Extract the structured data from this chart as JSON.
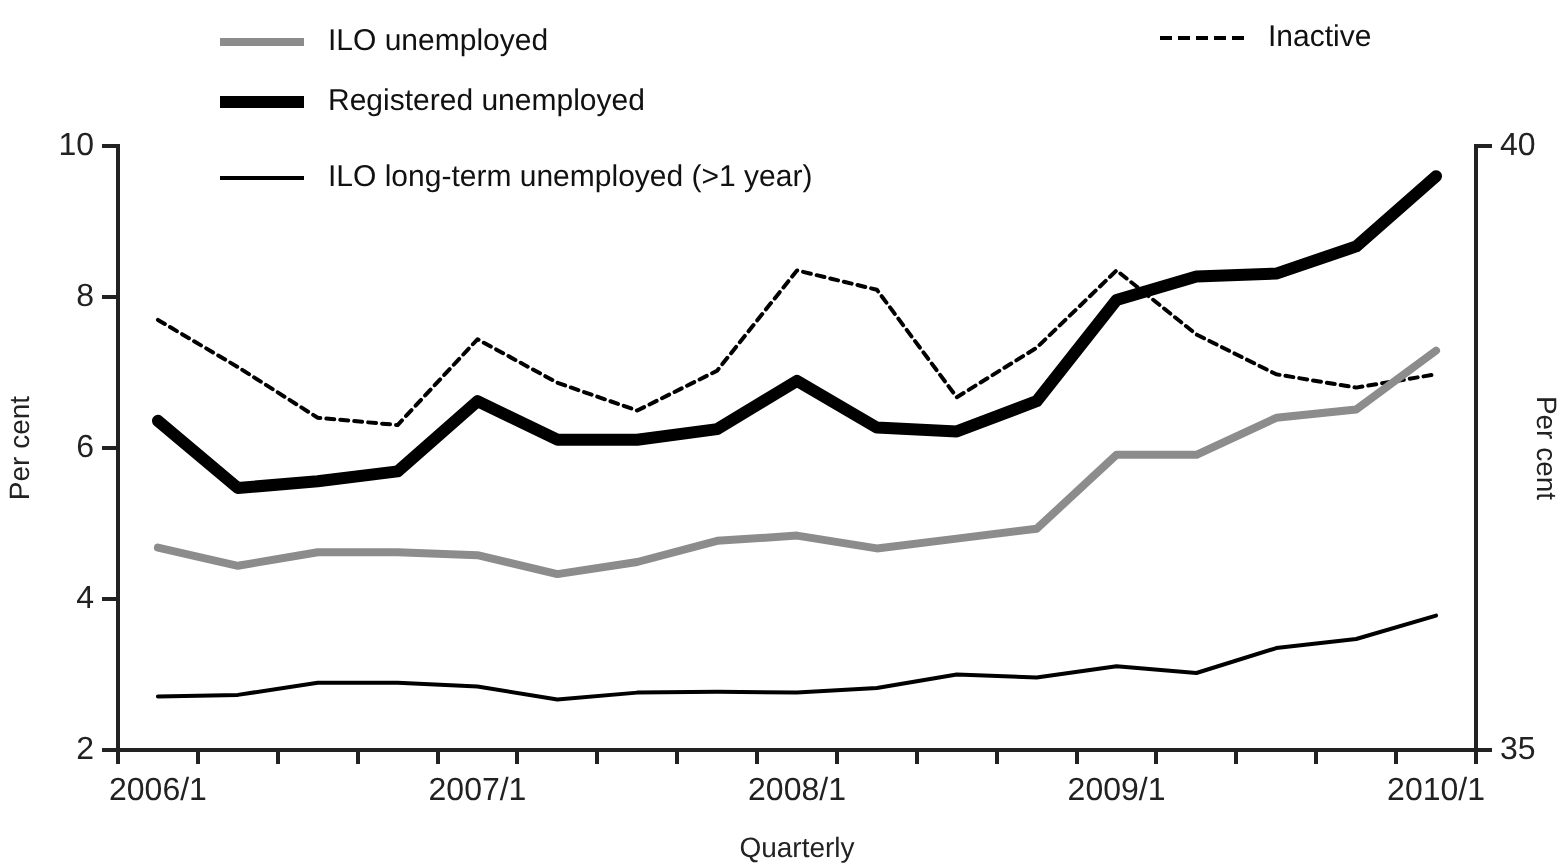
{
  "chart_data": {
    "type": "line",
    "xlabel": "Quarterly",
    "ylabel": "Per cent",
    "y2label": "Per cent",
    "categories": [
      "2006/1",
      null,
      null,
      null,
      "2007/1",
      null,
      null,
      null,
      "2008/1",
      null,
      null,
      null,
      "2009/1",
      null,
      null,
      null,
      "2010/1"
    ],
    "ylim": [
      2,
      10
    ],
    "yticks": [
      2,
      4,
      6,
      8,
      10
    ],
    "y2lim": [
      35,
      40
    ],
    "y2ticks": [
      35,
      40
    ],
    "grid": false,
    "legend": "top",
    "marker": "none",
    "series": [
      {
        "name": "ILO unemployed",
        "color": "#8c8c8c",
        "line_style": "solid",
        "values": [
          4.68,
          4.44,
          4.62,
          4.62,
          4.58,
          4.33,
          4.49,
          4.77,
          4.84,
          4.67,
          4.8,
          4.93,
          5.91,
          5.91,
          6.4,
          6.51,
          7.29
        ]
      },
      {
        "name": "Registered unemployed",
        "color": "#000000",
        "line_style": "solid",
        "values": [
          6.36,
          5.47,
          5.56,
          5.69,
          6.62,
          6.11,
          6.11,
          6.25,
          6.89,
          6.27,
          6.22,
          6.62,
          7.96,
          8.27,
          8.31,
          8.67,
          9.6
        ]
      },
      {
        "name": "ILO long-term unemployed (>1 year)",
        "color": "#000000",
        "line_style": "solid",
        "values": [
          2.71,
          2.73,
          2.89,
          2.89,
          2.84,
          2.67,
          2.76,
          2.77,
          2.76,
          2.82,
          3.0,
          2.96,
          3.11,
          3.02,
          3.35,
          3.47,
          3.78
        ]
      },
      {
        "name": "Inactive",
        "color": "#000000",
        "line_style": "dashed",
        "axis": "y2",
        "values": [
          38.56,
          38.17,
          37.75,
          37.69,
          38.4,
          38.04,
          37.81,
          38.14,
          38.97,
          38.81,
          37.92,
          38.33,
          38.97,
          38.44,
          38.11,
          38.0,
          38.11
        ]
      }
    ]
  }
}
